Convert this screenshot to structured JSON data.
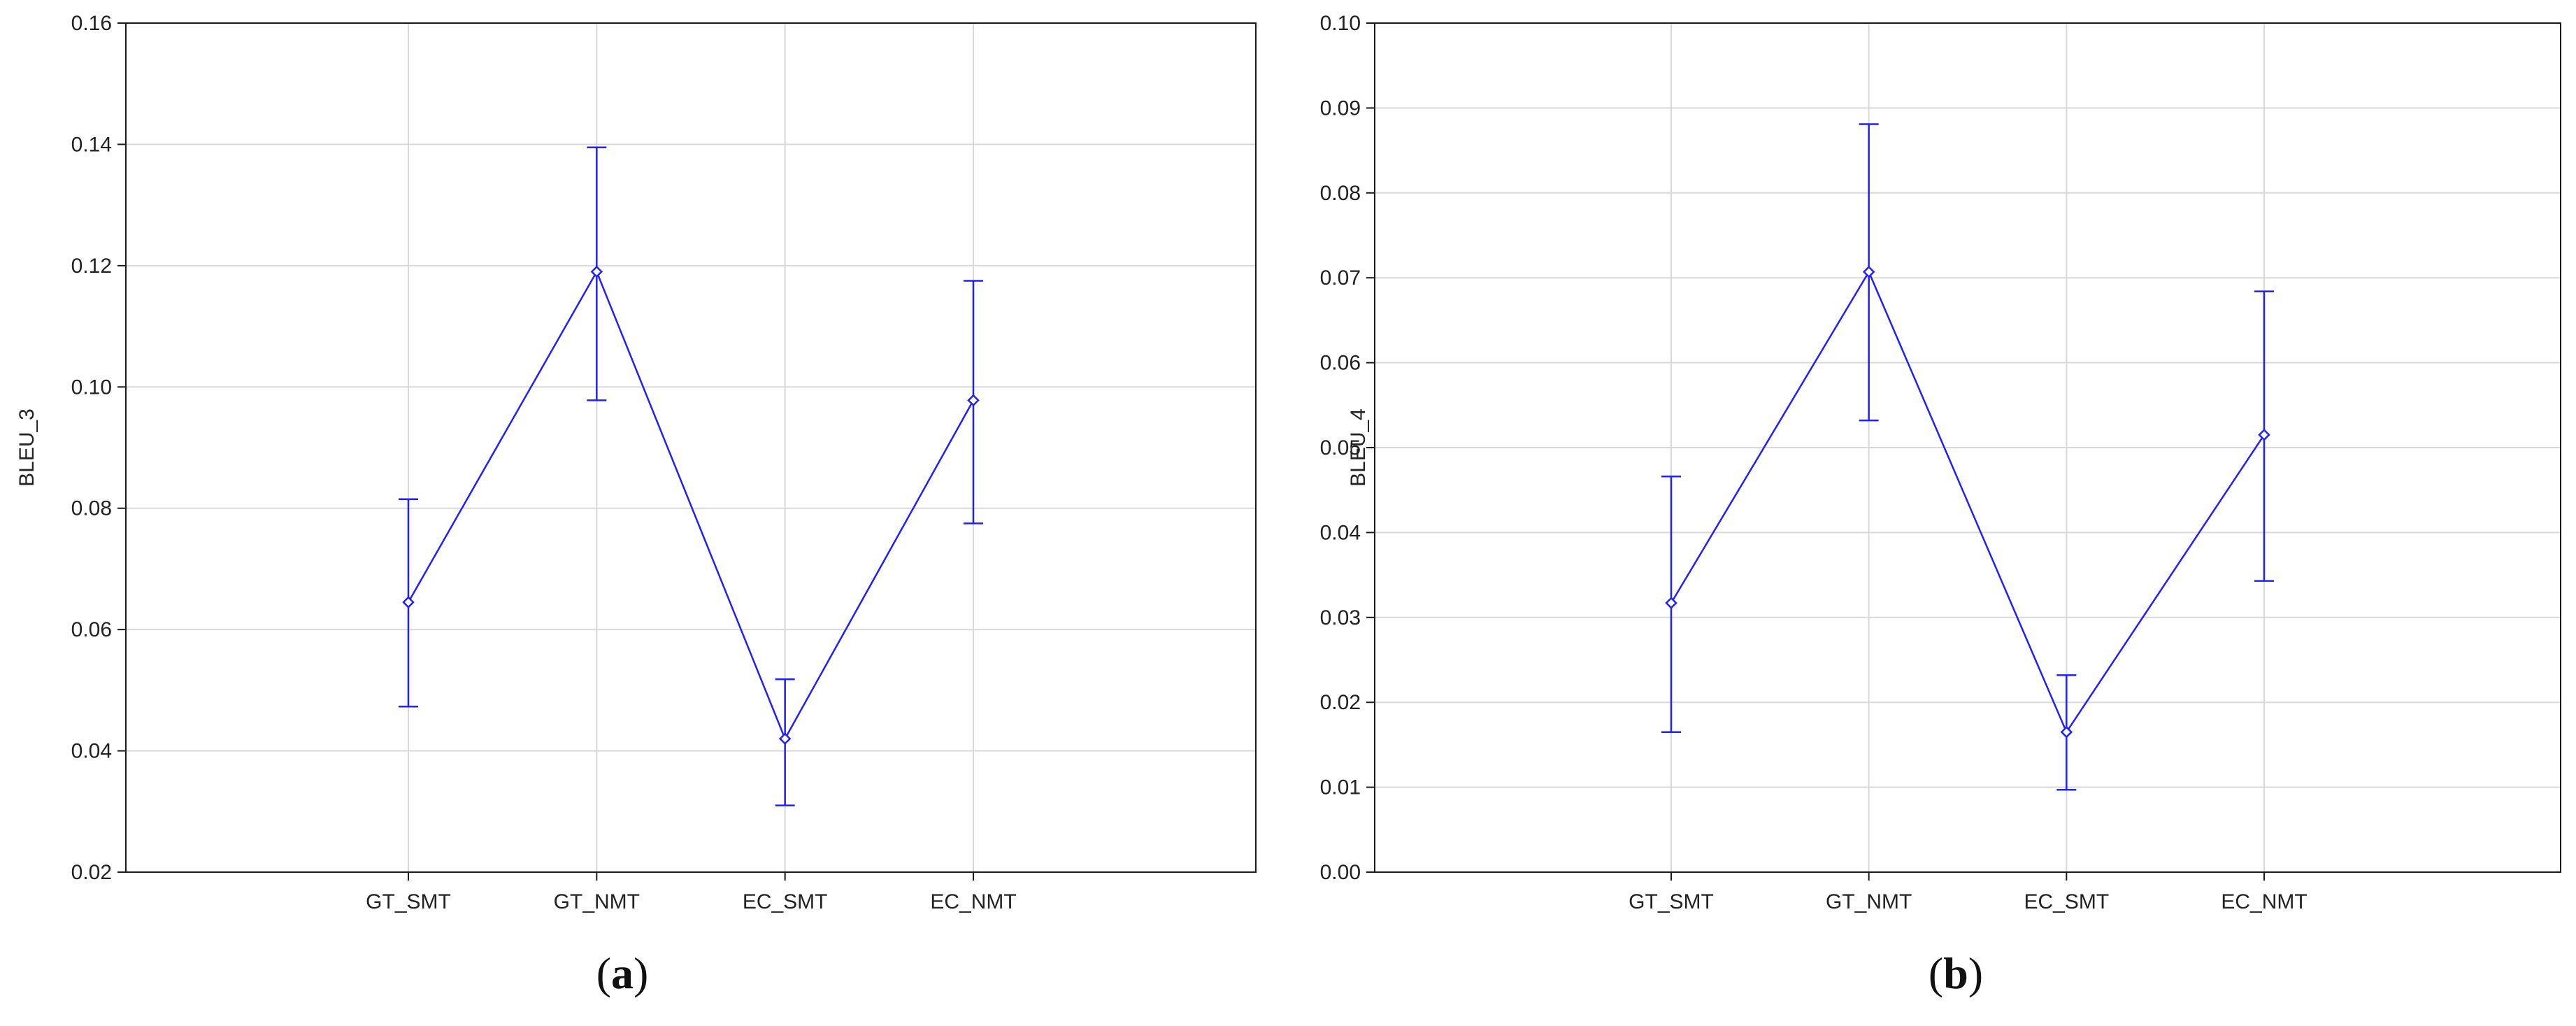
{
  "chart_data": [
    {
      "type": "line",
      "panel_label": "a",
      "ylabel": "BLEU_3",
      "xlabel": "",
      "categories": [
        "GT_SMT",
        "GT_NMT",
        "EC_SMT",
        "EC_NMT"
      ],
      "ylim": [
        0.02,
        0.16
      ],
      "yticks": [
        "0.02",
        "0.04",
        "0.06",
        "0.08",
        "0.10",
        "0.12",
        "0.14",
        "0.16"
      ],
      "grid": true,
      "series": [
        {
          "values": [
            0.0645,
            0.119,
            0.042,
            0.0978
          ],
          "lower": [
            0.0473,
            0.0978,
            0.031,
            0.0775
          ],
          "upper": [
            0.0815,
            0.1395,
            0.0518,
            0.1175
          ],
          "color": "#2020ff"
        }
      ]
    },
    {
      "type": "line",
      "panel_label": "b",
      "ylabel": "BLEU_4",
      "xlabel": "",
      "categories": [
        "GT_SMT",
        "GT_NMT",
        "EC_SMT",
        "EC_NMT"
      ],
      "ylim": [
        0.0,
        0.1
      ],
      "yticks": [
        "0.00",
        "0.01",
        "0.02",
        "0.03",
        "0.04",
        "0.05",
        "0.06",
        "0.07",
        "0.08",
        "0.09",
        "0.10"
      ],
      "grid": true,
      "series": [
        {
          "values": [
            0.0317,
            0.0707,
            0.0165,
            0.0515
          ],
          "lower": [
            0.0165,
            0.0532,
            0.0097,
            0.0343
          ],
          "upper": [
            0.0466,
            0.0881,
            0.0232,
            0.0684
          ],
          "color": "#2020ff"
        }
      ]
    }
  ]
}
